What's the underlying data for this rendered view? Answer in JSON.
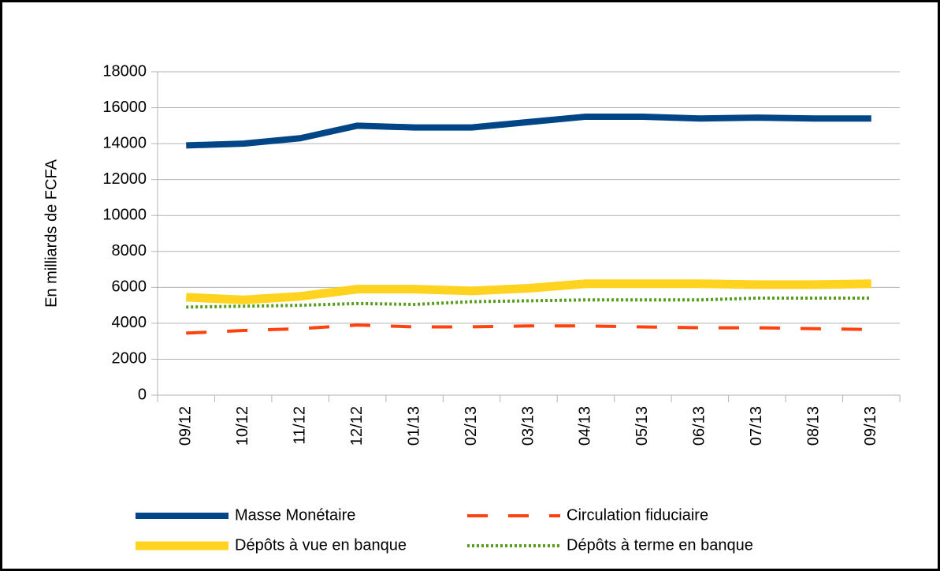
{
  "chart_data": {
    "type": "line",
    "y_label": "En milliards de FCFA",
    "categories": [
      "09/12",
      "10/12",
      "11/12",
      "12/12",
      "01/13",
      "02/13",
      "03/13",
      "04/13",
      "05/13",
      "06/13",
      "07/13",
      "08/13",
      "09/13"
    ],
    "series": [
      {
        "name": "Masse Monétaire",
        "color": "#004586",
        "line_style": "solid",
        "values": [
          13900,
          14000,
          14300,
          15000,
          14900,
          14900,
          15200,
          15500,
          15500,
          15400,
          15450,
          15400,
          15400
        ]
      },
      {
        "name": "Circulation fiduciaire",
        "color": "#ff420e",
        "line_style": "dashed",
        "values": [
          3450,
          3600,
          3700,
          3900,
          3800,
          3800,
          3850,
          3850,
          3800,
          3750,
          3750,
          3700,
          3650
        ]
      },
      {
        "name": "Dépôts à vue en banque",
        "color": "#ffd320",
        "line_style": "solid-wide",
        "values": [
          5450,
          5300,
          5500,
          5900,
          5900,
          5800,
          5950,
          6200,
          6200,
          6200,
          6150,
          6150,
          6200
        ]
      },
      {
        "name": "Dépôts à terme en banque",
        "color": "#579d1c",
        "line_style": "dotted",
        "values": [
          4900,
          4950,
          5000,
          5100,
          5050,
          5200,
          5250,
          5300,
          5300,
          5300,
          5400,
          5400,
          5400
        ]
      }
    ],
    "ylim": [
      0,
      18000
    ],
    "yticks": [
      0,
      2000,
      4000,
      6000,
      8000,
      10000,
      12000,
      14000,
      16000,
      18000
    ],
    "grid": true,
    "legend": "bottom"
  }
}
